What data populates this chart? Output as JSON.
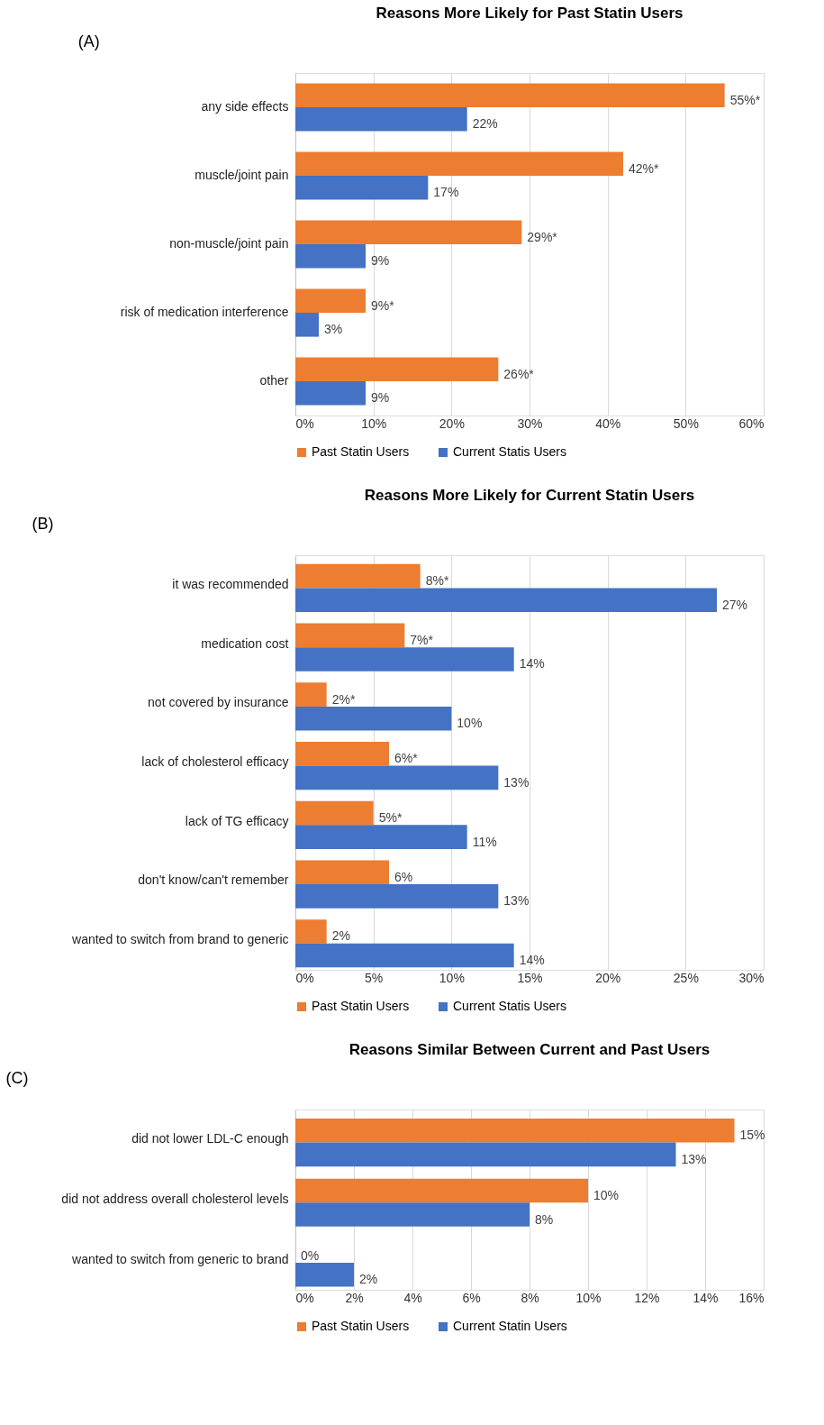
{
  "chart_data": [
    {
      "type": "bar",
      "orientation": "horizontal",
      "title": "Reasons More Likely for Past Statin Users",
      "annotations": [
        "(A)"
      ],
      "categories": [
        "any side effects",
        "muscle/joint pain",
        "non-muscle/joint pain",
        "risk of medication interference",
        "other"
      ],
      "series": [
        {
          "name": "Past Statin Users",
          "color": "#ed7d31",
          "values": [
            55,
            42,
            29,
            9,
            26
          ],
          "value_labels": [
            "55%*",
            "42%*",
            "29%*",
            "9%*",
            "26%*"
          ]
        },
        {
          "name": "Current Statis Users",
          "color": "#4472c4",
          "values": [
            22,
            17,
            9,
            3,
            9
          ],
          "value_labels": [
            "22%",
            "17%",
            "9%",
            "3%",
            "9%"
          ]
        }
      ],
      "xlim": [
        0,
        60
      ],
      "xticks": [
        {
          "value": 0,
          "label": "0%"
        },
        {
          "value": 10,
          "label": "10%"
        },
        {
          "value": 20,
          "label": "20%"
        },
        {
          "value": 30,
          "label": "30%"
        },
        {
          "value": 40,
          "label": "40%"
        },
        {
          "value": 50,
          "label": "50%"
        },
        {
          "value": 60,
          "label": "60%"
        }
      ],
      "grid": "x",
      "legend": "bottom"
    },
    {
      "type": "bar",
      "orientation": "horizontal",
      "title": "Reasons More Likely for Current Statin Users",
      "annotations": [
        "(B)"
      ],
      "categories": [
        "it was recommended",
        "medication cost",
        "not covered by insurance",
        "lack of cholesterol efficacy",
        "lack of TG efficacy",
        "don't know/can't remember",
        "wanted to switch from brand to generic"
      ],
      "series": [
        {
          "name": "Past Statin Users",
          "color": "#ed7d31",
          "values": [
            8,
            7,
            2,
            6,
            5,
            6,
            2
          ],
          "value_labels": [
            "8%*",
            "7%*",
            "2%*",
            "6%*",
            "5%*",
            "6%",
            "2%"
          ]
        },
        {
          "name": "Current Statis Users",
          "color": "#4472c4",
          "values": [
            27,
            14,
            10,
            13,
            11,
            13,
            14
          ],
          "value_labels": [
            "27%",
            "14%",
            "10%",
            "13%",
            "11%",
            "13%",
            "14%"
          ]
        }
      ],
      "xlim": [
        0,
        30
      ],
      "xticks": [
        {
          "value": 0,
          "label": "0%"
        },
        {
          "value": 5,
          "label": "5%"
        },
        {
          "value": 10,
          "label": "10%"
        },
        {
          "value": 15,
          "label": "15%"
        },
        {
          "value": 20,
          "label": "20%"
        },
        {
          "value": 25,
          "label": "25%"
        },
        {
          "value": 30,
          "label": "30%"
        }
      ],
      "grid": "x",
      "legend": "bottom"
    },
    {
      "type": "bar",
      "orientation": "horizontal",
      "title": "Reasons Similar Between Current and Past Users",
      "annotations": [
        "(C)"
      ],
      "categories": [
        "did not lower LDL-C enough",
        "did not address overall cholesterol levels",
        "wanted to switch from generic to brand"
      ],
      "series": [
        {
          "name": "Past Statin Users",
          "color": "#ed7d31",
          "values": [
            15,
            10,
            0
          ],
          "value_labels": [
            "15%",
            "10%",
            "0%"
          ]
        },
        {
          "name": "Current Statin Users",
          "color": "#4472c4",
          "values": [
            13,
            8,
            2
          ],
          "value_labels": [
            "13%",
            "8%",
            "2%"
          ]
        }
      ],
      "xlim": [
        0,
        16
      ],
      "xticks": [
        {
          "value": 0,
          "label": "0%"
        },
        {
          "value": 2,
          "label": "2%"
        },
        {
          "value": 4,
          "label": "4%"
        },
        {
          "value": 6,
          "label": "6%"
        },
        {
          "value": 8,
          "label": "8%"
        },
        {
          "value": 10,
          "label": "10%"
        },
        {
          "value": 12,
          "label": "12%"
        },
        {
          "value": 14,
          "label": "14%"
        },
        {
          "value": 16,
          "label": "16%"
        }
      ],
      "grid": "x",
      "legend": "bottom"
    }
  ]
}
